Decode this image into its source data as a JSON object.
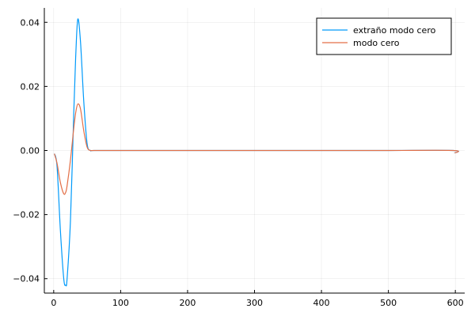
{
  "chart_data": {
    "type": "line",
    "title": "",
    "xlabel": "",
    "ylabel": "",
    "xlim": [
      -14,
      614
    ],
    "ylim": [
      -0.0445,
      0.0445
    ],
    "x_ticks": [
      0,
      100,
      200,
      300,
      400,
      500,
      600
    ],
    "x_tick_labels": [
      "0",
      "100",
      "200",
      "300",
      "400",
      "500",
      "600"
    ],
    "y_ticks": [
      -0.04,
      -0.02,
      0.0,
      0.02,
      0.04
    ],
    "y_tick_labels": [
      "−0.04",
      "−0.02",
      "0.00",
      "0.02",
      "0.04"
    ],
    "grid": true,
    "legend_position": "top-right",
    "series": [
      {
        "name": "extraño modo cero",
        "color": "#009AFA",
        "x": [
          1,
          5,
          10,
          15,
          18,
          20,
          25,
          30,
          33,
          36,
          40,
          45,
          50,
          55,
          60,
          100,
          200,
          300,
          400,
          500,
          597,
          599
        ],
        "y": [
          -0.001,
          -0.005,
          -0.025,
          -0.04,
          -0.042,
          -0.04,
          -0.022,
          0.012,
          0.03,
          0.041,
          0.034,
          0.015,
          0.002,
          0.0,
          0.0,
          0.0,
          0.0,
          0.0,
          0.0,
          0.0,
          0.0,
          -0.0008
        ]
      },
      {
        "name": "modo cero",
        "color": "#E36F47",
        "x": [
          1,
          5,
          10,
          15,
          18,
          20,
          25,
          30,
          33,
          36,
          40,
          45,
          50,
          55,
          60,
          100,
          200,
          300,
          400,
          500,
          597,
          599
        ],
        "y": [
          -0.001,
          -0.004,
          -0.01,
          -0.0135,
          -0.013,
          -0.011,
          -0.003,
          0.007,
          0.012,
          0.0145,
          0.013,
          0.006,
          0.001,
          0.0,
          0.0,
          0.0,
          0.0,
          0.0,
          0.0,
          0.0,
          0.0,
          -0.0008
        ]
      }
    ]
  }
}
